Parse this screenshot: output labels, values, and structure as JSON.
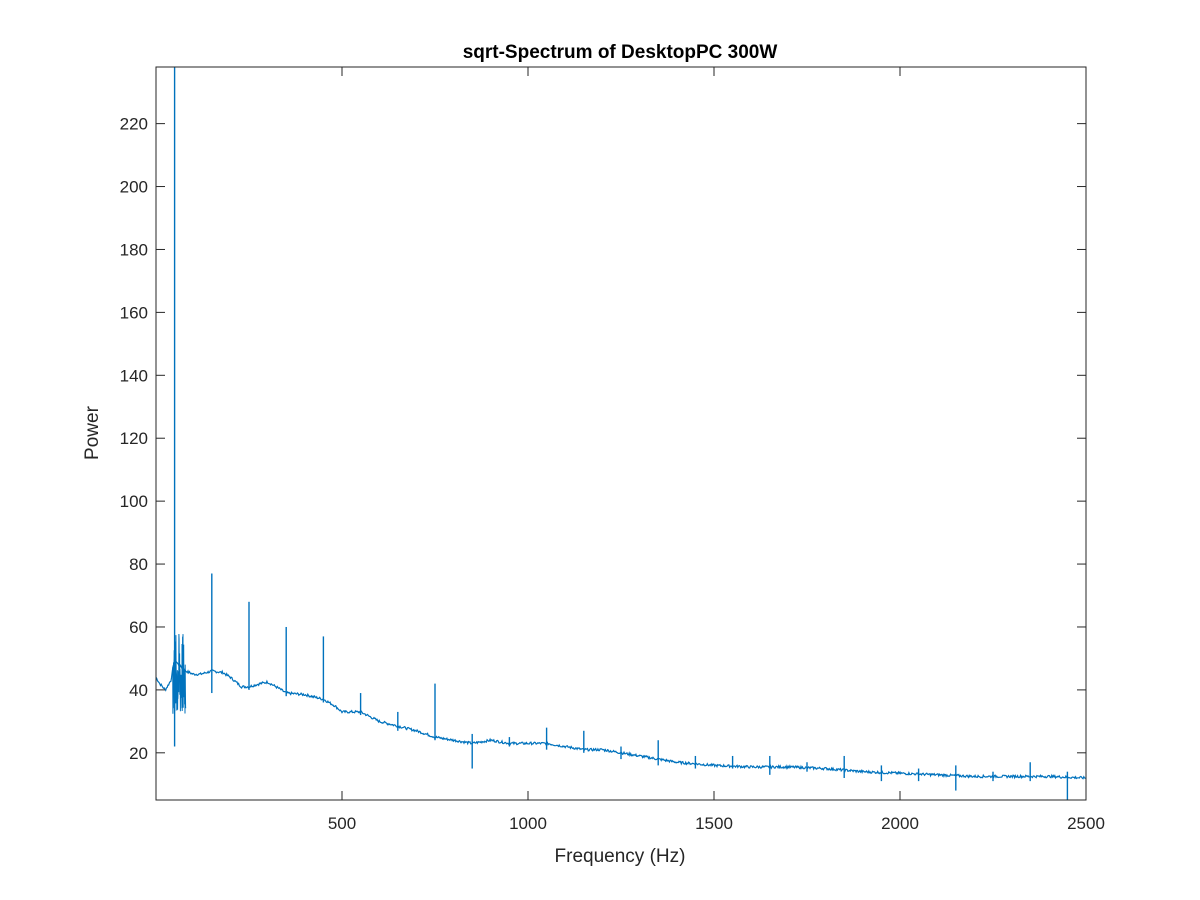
{
  "chart_data": {
    "type": "line",
    "title": "sqrt-Spectrum of DesktopPC 300W",
    "xlabel": "Frequency (Hz)",
    "ylabel": "Power",
    "xlim": [
      0,
      2500
    ],
    "ylim": [
      5,
      238
    ],
    "xticks": [
      500,
      1000,
      1500,
      2000,
      2500
    ],
    "xtick_labels": [
      "500",
      "1000",
      "1500",
      "2000",
      "2500"
    ],
    "yticks": [
      20,
      40,
      60,
      80,
      100,
      120,
      140,
      160,
      180,
      200,
      220
    ],
    "ytick_labels": [
      "20",
      "40",
      "60",
      "80",
      "100",
      "120",
      "140",
      "160",
      "180",
      "200",
      "220"
    ],
    "grid": false,
    "colors": {
      "line": "#0072bd",
      "axes": "#262626"
    },
    "series": [
      {
        "baseline": {
          "x": [
            0,
            10,
            25,
            40,
            50,
            60,
            80,
            100,
            120,
            150,
            180,
            200,
            230,
            250,
            280,
            300,
            330,
            350,
            400,
            450,
            480,
            500,
            550,
            600,
            650,
            700,
            750,
            800,
            850,
            900,
            950,
            1000,
            1050,
            1100,
            1150,
            1200,
            1250,
            1300,
            1350,
            1400,
            1450,
            1500,
            1600,
            1700,
            1800,
            1900,
            2000,
            2100,
            2200,
            2300,
            2400,
            2500
          ],
          "y": [
            44,
            42,
            40,
            43,
            50,
            48,
            46,
            45,
            45,
            46,
            45.5,
            44,
            41,
            41,
            42,
            42.5,
            40.5,
            39,
            38.5,
            37,
            35,
            33,
            33,
            30,
            28.5,
            27,
            25,
            24,
            23,
            24,
            23,
            23,
            23,
            22,
            21,
            21,
            20,
            19,
            18,
            17,
            16.5,
            16,
            15.5,
            15.5,
            15,
            14,
            13.5,
            13,
            12.5,
            12.5,
            12.5,
            12
          ]
        },
        "spikes": [
          {
            "x": 50,
            "top": 238,
            "bottom": 22
          },
          {
            "x": 150,
            "top": 77,
            "bottom": 39
          },
          {
            "x": 250,
            "top": 68,
            "bottom": 40
          },
          {
            "x": 350,
            "top": 60,
            "bottom": 38
          },
          {
            "x": 450,
            "top": 57,
            "bottom": 36
          },
          {
            "x": 550,
            "top": 39,
            "bottom": 32
          },
          {
            "x": 650,
            "top": 33,
            "bottom": 27
          },
          {
            "x": 750,
            "top": 42,
            "bottom": 24
          },
          {
            "x": 850,
            "top": 26,
            "bottom": 15
          },
          {
            "x": 950,
            "top": 25,
            "bottom": 22
          },
          {
            "x": 1050,
            "top": 28,
            "bottom": 21
          },
          {
            "x": 1150,
            "top": 27,
            "bottom": 20
          },
          {
            "x": 1250,
            "top": 22,
            "bottom": 18
          },
          {
            "x": 1350,
            "top": 24,
            "bottom": 16
          },
          {
            "x": 1450,
            "top": 19,
            "bottom": 15
          },
          {
            "x": 1550,
            "top": 19,
            "bottom": 15
          },
          {
            "x": 1650,
            "top": 19,
            "bottom": 13
          },
          {
            "x": 1750,
            "top": 17,
            "bottom": 14
          },
          {
            "x": 1850,
            "top": 19,
            "bottom": 12
          },
          {
            "x": 1950,
            "top": 16,
            "bottom": 11
          },
          {
            "x": 2050,
            "top": 15,
            "bottom": 11
          },
          {
            "x": 2150,
            "top": 16,
            "bottom": 8
          },
          {
            "x": 2250,
            "top": 14,
            "bottom": 11
          },
          {
            "x": 2350,
            "top": 17,
            "bottom": 11
          },
          {
            "x": 2450,
            "top": 14,
            "bottom": 5
          }
        ],
        "noise_region": {
          "x_start": 45,
          "x_end": 80,
          "low": 30,
          "high": 58
        }
      }
    ]
  }
}
